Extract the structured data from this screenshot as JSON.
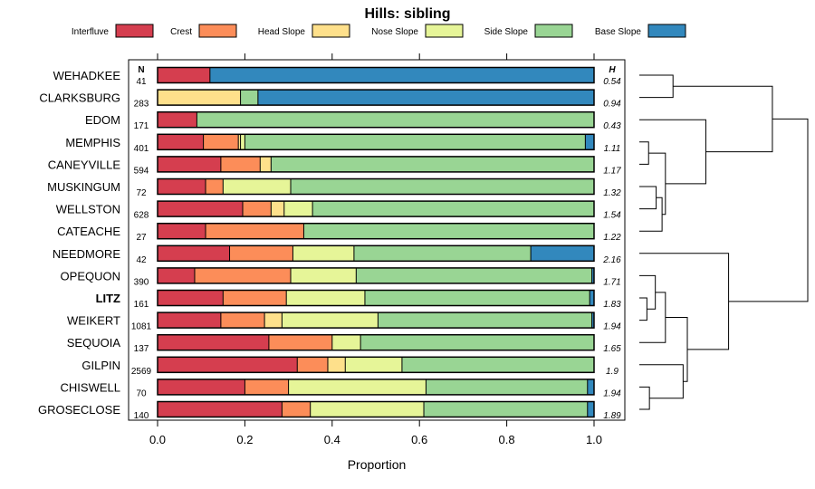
{
  "chart_data": {
    "type": "bar",
    "orientation": "horizontal",
    "stacked": true,
    "title": "Hills: sibling",
    "xlabel": "Proportion",
    "ylabel": "",
    "xlim": [
      0,
      1
    ],
    "x_ticks": [
      "0.0",
      "0.2",
      "0.4",
      "0.6",
      "0.8",
      "1.0"
    ],
    "x_tick_values": [
      0,
      0.2,
      0.4,
      0.6,
      0.8,
      1.0
    ],
    "legend_position": "top",
    "n_header": "N",
    "h_header": "H",
    "highlight_category": "LITZ",
    "legend": [
      {
        "name": "Interfluve",
        "color": "#d53e4f"
      },
      {
        "name": "Crest",
        "color": "#fc8d59"
      },
      {
        "name": "Head Slope",
        "color": "#fee08b"
      },
      {
        "name": "Nose Slope",
        "color": "#e6f598"
      },
      {
        "name": "Side Slope",
        "color": "#99d594"
      },
      {
        "name": "Base Slope",
        "color": "#3288bd"
      }
    ],
    "categories": [
      "WEHADKEE",
      "CLARKSBURG",
      "EDOM",
      "MEMPHIS",
      "CANEYVILLE",
      "MUSKINGUM",
      "WELLSTON",
      "CATEACHE",
      "NEEDMORE",
      "OPEQUON",
      "LITZ",
      "WEIKERT",
      "SEQUOIA",
      "GILPIN",
      "CHISWELL",
      "GROSECLOSE"
    ],
    "n_values": [
      "41",
      "283",
      "171",
      "401",
      "594",
      "72",
      "628",
      "27",
      "42",
      "390",
      "161",
      "1081",
      "137",
      "2569",
      "70",
      "140"
    ],
    "h_values": [
      "0.54",
      "0.94",
      "0.43",
      "1.11",
      "1.17",
      "1.32",
      "1.54",
      "1.22",
      "2.16",
      "1.71",
      "1.83",
      "1.94",
      "1.65",
      "1.9",
      "1.94",
      "1.89"
    ],
    "series": [
      {
        "name": "Interfluve",
        "values": [
          0.12,
          0.0,
          0.09,
          0.105,
          0.145,
          0.11,
          0.195,
          0.11,
          0.165,
          0.085,
          0.15,
          0.145,
          0.255,
          0.32,
          0.2,
          0.285
        ]
      },
      {
        "name": "Crest",
        "values": [
          0.0,
          0.0,
          0.0,
          0.08,
          0.09,
          0.04,
          0.065,
          0.225,
          0.145,
          0.22,
          0.145,
          0.1,
          0.145,
          0.07,
          0.1,
          0.065
        ]
      },
      {
        "name": "Head Slope",
        "values": [
          0.0,
          0.19,
          0.0,
          0.005,
          0.025,
          0.0,
          0.03,
          0.0,
          0.0,
          0.0,
          0.0,
          0.04,
          0.0,
          0.04,
          0.0,
          0.0
        ]
      },
      {
        "name": "Nose Slope",
        "values": [
          0.0,
          0.0,
          0.0,
          0.01,
          0.0,
          0.155,
          0.065,
          0.0,
          0.14,
          0.15,
          0.18,
          0.22,
          0.065,
          0.13,
          0.315,
          0.26
        ]
      },
      {
        "name": "Side Slope",
        "values": [
          0.0,
          0.04,
          0.91,
          0.78,
          0.74,
          0.695,
          0.645,
          0.665,
          0.405,
          0.54,
          0.515,
          0.49,
          0.535,
          0.44,
          0.37,
          0.375
        ]
      },
      {
        "name": "Base Slope",
        "values": [
          0.88,
          0.77,
          0.0,
          0.02,
          0.0,
          0.0,
          0.0,
          0.0,
          0.145,
          0.005,
          0.01,
          0.005,
          0.0,
          0.0,
          0.015,
          0.015
        ]
      }
    ],
    "dendrogram": {
      "leaf_order": [
        "WEHADKEE",
        "CLARKSBURG",
        "EDOM",
        "MEMPHIS",
        "CANEYVILLE",
        "MUSKINGUM",
        "WELLSTON",
        "CATEACHE",
        "NEEDMORE",
        "OPEQUON",
        "LITZ",
        "WEIKERT",
        "SEQUOIA",
        "GILPIN",
        "CHISWELL",
        "GROSECLOSE"
      ],
      "max_height": 1.0,
      "merges": [
        {
          "a": "L0",
          "b": "L1",
          "height": 0.2,
          "id": "c1"
        },
        {
          "a": "L3",
          "b": "L4",
          "height": 0.055,
          "id": "c2"
        },
        {
          "a": "L5",
          "b": "L6",
          "height": 0.1,
          "id": "c3"
        },
        {
          "a": "c3",
          "b": "L7",
          "height": 0.135,
          "id": "c4"
        },
        {
          "a": "c2",
          "b": "c4",
          "height": 0.155,
          "id": "c5"
        },
        {
          "a": "L2",
          "b": "c5",
          "height": 0.395,
          "id": "c6"
        },
        {
          "a": "c1",
          "b": "c6",
          "height": 0.79,
          "id": "c7"
        },
        {
          "a": "L10",
          "b": "L11",
          "height": 0.045,
          "id": "c8"
        },
        {
          "a": "L9",
          "b": "c8",
          "height": 0.095,
          "id": "c9"
        },
        {
          "a": "c9",
          "b": "L12",
          "height": 0.155,
          "id": "c10"
        },
        {
          "a": "L14",
          "b": "L15",
          "height": 0.06,
          "id": "c11"
        },
        {
          "a": "L13",
          "b": "c11",
          "height": 0.26,
          "id": "c12"
        },
        {
          "a": "c10",
          "b": "c12",
          "height": 0.285,
          "id": "c13"
        },
        {
          "a": "L8",
          "b": "c13",
          "height": 0.53,
          "id": "c14"
        },
        {
          "a": "c7",
          "b": "c14",
          "height": 1.0,
          "id": "c15"
        }
      ]
    }
  }
}
